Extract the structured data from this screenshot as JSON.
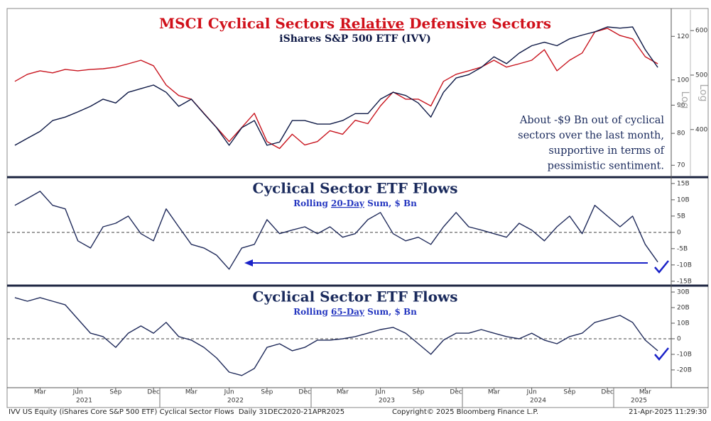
{
  "chart_data": [
    {
      "type": "line",
      "title": [
        "MSCI Cyclical Sectors ",
        "Relative",
        " Defensive Sectors"
      ],
      "title_underline": 1,
      "title_color": "#d0101a",
      "subtitle": "iShares S&P 500 ETF (IVV)",
      "annotation": [
        "About -$9 Bn out of cyclical",
        "sectors over the last month,",
        "supportive in terms of",
        "pessimistic sentiment."
      ],
      "x": [
        "2021-01",
        "2021-02",
        "2021-03",
        "2021-04",
        "2021-05",
        "2021-06",
        "2021-07",
        "2021-08",
        "2021-09",
        "2021-10",
        "2021-11",
        "2021-12",
        "2022-01",
        "2022-02",
        "2022-03",
        "2022-04",
        "2022-05",
        "2022-06",
        "2022-07",
        "2022-08",
        "2022-09",
        "2022-10",
        "2022-11",
        "2022-12",
        "2023-01",
        "2023-02",
        "2023-03",
        "2023-04",
        "2023-05",
        "2023-06",
        "2023-07",
        "2023-08",
        "2023-09",
        "2023-10",
        "2023-11",
        "2023-12",
        "2024-01",
        "2024-02",
        "2024-03",
        "2024-04",
        "2024-05",
        "2024-06",
        "2024-07",
        "2024-08",
        "2024-09",
        "2024-10",
        "2024-11",
        "2024-12",
        "2025-01",
        "2025-02",
        "2025-03",
        "2025-04"
      ],
      "xlim": [
        "2021-01",
        "2025-04"
      ],
      "ylim": [
        67,
        134
      ],
      "yticks": [
        70,
        80,
        90,
        100,
        120
      ],
      "log_y": true,
      "y_scale_label": "Log",
      "y2lim": [
        331,
        653
      ],
      "y2ticks": [
        400,
        500,
        600
      ],
      "log_y2": true,
      "y2_scale_label": "Log",
      "series": [
        {
          "color": "#c8141e",
          "axis": "y",
          "values": [
            99.4,
            102.4,
            103.9,
            103.0,
            104.5,
            103.9,
            104.5,
            104.8,
            105.5,
            107.0,
            108.6,
            106.1,
            97.9,
            93.7,
            92.3,
            87.0,
            82.0,
            77.3,
            82.0,
            87.0,
            77.3,
            75.1,
            79.7,
            76.2,
            77.3,
            80.9,
            79.7,
            84.5,
            83.3,
            89.7,
            95.1,
            92.3,
            92.3,
            89.7,
            99.4,
            102.4,
            103.9,
            105.5,
            108.6,
            105.5,
            107.0,
            108.6,
            113.5,
            103.9,
            108.6,
            111.9,
            122.2,
            124.1,
            120.4,
            118.7,
            110.2,
            107.0
          ]
        },
        {
          "color": "#0d1845",
          "axis": "y2",
          "values": [
            375,
            386,
            397,
            415,
            421,
            430,
            440,
            453,
            446,
            466,
            473,
            480,
            466,
            440,
            453,
            427,
            403,
            375,
            403,
            415,
            375,
            380,
            415,
            415,
            409,
            409,
            415,
            427,
            427,
            453,
            466,
            460,
            446,
            421,
            466,
            494,
            501,
            516,
            539,
            524,
            547,
            564,
            572,
            564,
            580,
            589,
            597,
            609,
            606,
            609,
            555,
            516
          ]
        }
      ]
    },
    {
      "type": "line",
      "title": "Cyclical Sector ETF Flows",
      "title_color": "#1a2a5c",
      "subtitle": [
        "Rolling ",
        "20-Day",
        " Sum, $ Bn"
      ],
      "subtitle_underline": 1,
      "x": [
        "2021-01",
        "2021-02",
        "2021-03",
        "2021-04",
        "2021-05",
        "2021-06",
        "2021-07",
        "2021-08",
        "2021-09",
        "2021-10",
        "2021-11",
        "2021-12",
        "2022-01",
        "2022-02",
        "2022-03",
        "2022-04",
        "2022-05",
        "2022-06",
        "2022-07",
        "2022-08",
        "2022-09",
        "2022-10",
        "2022-11",
        "2022-12",
        "2023-01",
        "2023-02",
        "2023-03",
        "2023-04",
        "2023-05",
        "2023-06",
        "2023-07",
        "2023-08",
        "2023-09",
        "2023-10",
        "2023-11",
        "2023-12",
        "2024-01",
        "2024-02",
        "2024-03",
        "2024-04",
        "2024-05",
        "2024-06",
        "2024-07",
        "2024-08",
        "2024-09",
        "2024-10",
        "2024-11",
        "2024-12",
        "2025-01",
        "2025-02",
        "2025-03",
        "2025-04"
      ],
      "xlim": [
        "2021-01",
        "2025-04"
      ],
      "ylim": [
        -15.7,
        16.5
      ],
      "yticks": [
        {
          "value": 15,
          "label": "15B"
        },
        {
          "value": 10,
          "label": "10B"
        },
        {
          "value": 5,
          "label": "5B"
        },
        0,
        {
          "value": -5,
          "label": "-5B"
        },
        {
          "value": -10,
          "label": "-10B"
        },
        {
          "value": -15,
          "label": "-15B"
        }
      ],
      "zero_line": "dashed",
      "series": [
        {
          "color": "#1f2a5a",
          "values": [
            8.3,
            10.4,
            12.6,
            8.3,
            7.2,
            -2.6,
            -4.8,
            1.7,
            2.8,
            5,
            -0.4,
            -2.6,
            7.2,
            1.7,
            -3.7,
            -4.8,
            -7.0,
            -11.3,
            -4.8,
            -3.7,
            3.9,
            -0.4,
            0.7,
            1.7,
            -0.4,
            1.7,
            -1.5,
            -0.4,
            3.9,
            6.1,
            -0.4,
            -2.6,
            -1.5,
            -3.7,
            1.7,
            6.1,
            1.7,
            0.7,
            -0.4,
            -1.5,
            2.8,
            0.7,
            -2.6,
            1.7,
            5,
            -0.4,
            8.3,
            5,
            1.7,
            5,
            -3.7,
            -9.1
          ]
        }
      ]
    },
    {
      "type": "line",
      "title": "Cyclical Sector ETF Flows",
      "title_color": "#1a2a5c",
      "subtitle": [
        "Rolling ",
        "65-Day",
        " Sum, $ Bn"
      ],
      "subtitle_underline": 1,
      "x": [
        "2021-01",
        "2021-02",
        "2021-03",
        "2021-04",
        "2021-05",
        "2021-06",
        "2021-07",
        "2021-08",
        "2021-09",
        "2021-10",
        "2021-11",
        "2021-12",
        "2022-01",
        "2022-02",
        "2022-03",
        "2022-04",
        "2022-05",
        "2022-06",
        "2022-07",
        "2022-08",
        "2022-09",
        "2022-10",
        "2022-11",
        "2022-12",
        "2023-01",
        "2023-02",
        "2023-03",
        "2023-04",
        "2023-05",
        "2023-06",
        "2023-07",
        "2023-08",
        "2023-09",
        "2023-10",
        "2023-11",
        "2023-12",
        "2024-01",
        "2024-02",
        "2024-03",
        "2024-04",
        "2024-05",
        "2024-06",
        "2024-07",
        "2024-08",
        "2024-09",
        "2024-10",
        "2024-11",
        "2024-12",
        "2025-01",
        "2025-02",
        "2025-03",
        "2025-04"
      ],
      "xlim": [
        "2021-01",
        "2025-04"
      ],
      "ylim": [
        -30.5,
        33.2
      ],
      "yticks": [
        {
          "value": 30,
          "label": "30B"
        },
        {
          "value": 20,
          "label": "20B"
        },
        {
          "value": 10,
          "label": "10B"
        },
        0,
        {
          "value": -10,
          "label": "-10B"
        },
        {
          "value": -20,
          "label": "-20B"
        }
      ],
      "zero_line": "dashed",
      "xticks": [
        {
          "value": "2021-03",
          "label": "Mar"
        },
        {
          "value": "2021-06",
          "label": "Jun"
        },
        {
          "value": "2021-09",
          "label": "Sep"
        },
        {
          "value": "2021-12",
          "label": "Dec"
        },
        {
          "value": "2022-03",
          "label": "Mar"
        },
        {
          "value": "2022-06",
          "label": "Jun"
        },
        {
          "value": "2022-09",
          "label": "Sep"
        },
        {
          "value": "2022-12",
          "label": "Dec"
        },
        {
          "value": "2023-03",
          "label": "Mar"
        },
        {
          "value": "2023-06",
          "label": "Jun"
        },
        {
          "value": "2023-09",
          "label": "Sep"
        },
        {
          "value": "2023-12",
          "label": "Dec"
        },
        {
          "value": "2024-03",
          "label": "Mar"
        },
        {
          "value": "2024-06",
          "label": "Jun"
        },
        {
          "value": "2024-09",
          "label": "Sep"
        },
        {
          "value": "2024-12",
          "label": "Dec"
        },
        {
          "value": "2025-03",
          "label": "Mar"
        }
      ],
      "year_ticks": [
        2021,
        2022,
        2023,
        2024,
        2025
      ],
      "series": [
        {
          "color": "#1f2a5a",
          "values": [
            26.4,
            24.1,
            26.4,
            24.1,
            21.8,
            12.7,
            3.6,
            1.4,
            -5.5,
            3.6,
            8.2,
            3.6,
            10.5,
            1.4,
            -0.9,
            -5.5,
            -12.3,
            -21.4,
            -23.6,
            -19.1,
            -5.5,
            -3.2,
            -7.7,
            -5.5,
            -0.9,
            -0.9,
            0,
            1.4,
            3.6,
            5.9,
            7.3,
            3.6,
            -3.2,
            -10,
            -0.9,
            3.6,
            3.6,
            5.9,
            3.6,
            1.4,
            0,
            3.6,
            -0.9,
            -3.2,
            1.4,
            3.6,
            10.5,
            12.7,
            15.0,
            10.5,
            -0.9,
            -7.7
          ]
        }
      ]
    }
  ],
  "footer": {
    "left": "IVV US Equity (iShares Core S&P 500 ETF) Cyclical Sector Flows  Daily 31DEC2020-21APR2025",
    "center": "Copyright© 2025 Bloomberg Finance L.P.",
    "right": "21-Apr-2025 11:29:30"
  }
}
